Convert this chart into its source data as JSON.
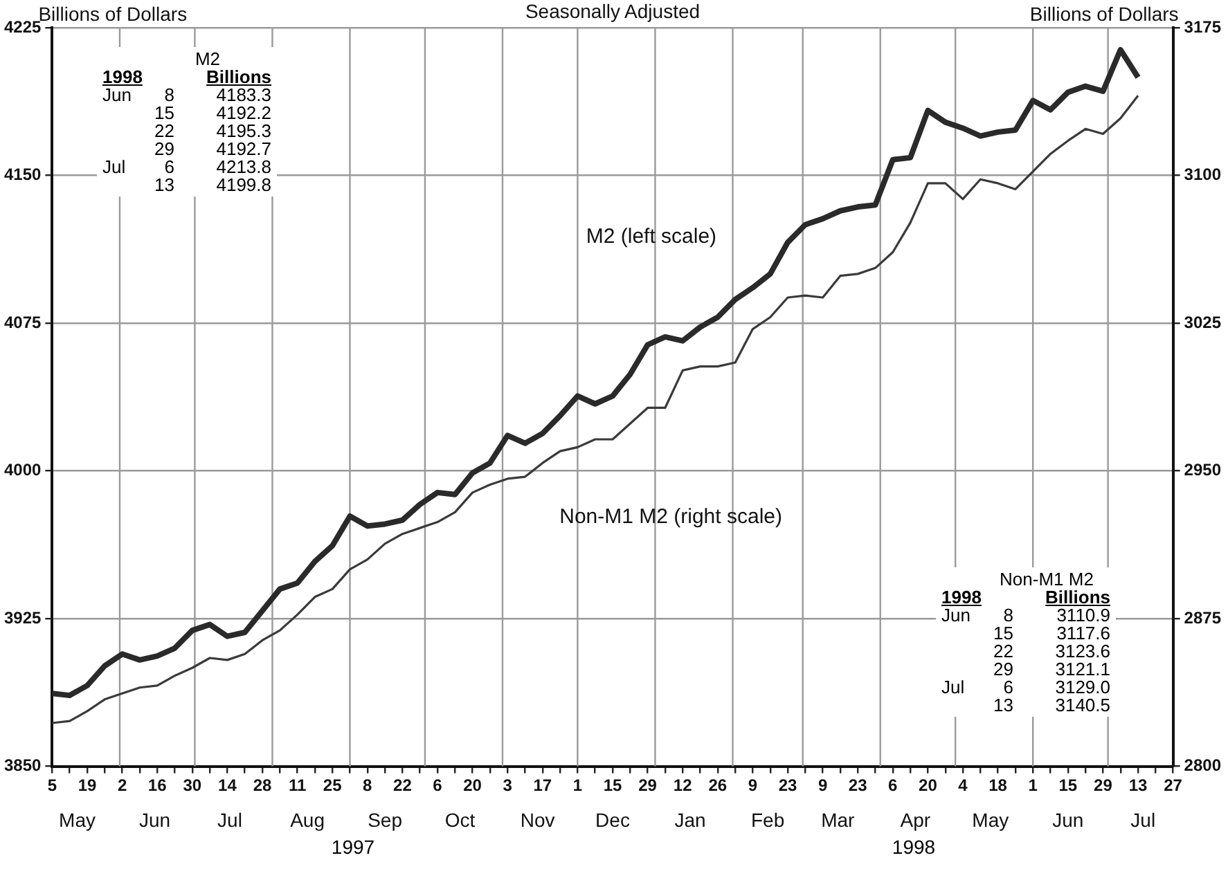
{
  "chart_data": {
    "type": "line",
    "title": "Seasonally Adjusted",
    "ylabel": "Billions of Dollars",
    "y2label": "Billions of Dollars",
    "x": [
      "1997-05-05",
      "1997-05-12",
      "1997-05-19",
      "1997-05-26",
      "1997-06-02",
      "1997-06-09",
      "1997-06-16",
      "1997-06-23",
      "1997-06-30",
      "1997-07-07",
      "1997-07-14",
      "1997-07-21",
      "1997-07-28",
      "1997-08-04",
      "1997-08-11",
      "1997-08-18",
      "1997-08-25",
      "1997-09-01",
      "1997-09-08",
      "1997-09-15",
      "1997-09-22",
      "1997-09-29",
      "1997-10-06",
      "1997-10-13",
      "1997-10-20",
      "1997-10-27",
      "1997-11-03",
      "1997-11-10",
      "1997-11-17",
      "1997-11-24",
      "1997-12-01",
      "1997-12-08",
      "1997-12-15",
      "1997-12-22",
      "1997-12-29",
      "1998-01-05",
      "1998-01-12",
      "1998-01-19",
      "1998-01-26",
      "1998-02-02",
      "1998-02-09",
      "1998-02-16",
      "1998-02-23",
      "1998-03-02",
      "1998-03-09",
      "1998-03-16",
      "1998-03-23",
      "1998-03-30",
      "1998-04-06",
      "1998-04-13",
      "1998-04-20",
      "1998-04-27",
      "1998-05-04",
      "1998-05-11",
      "1998-05-18",
      "1998-05-25",
      "1998-06-01",
      "1998-06-08",
      "1998-06-15",
      "1998-06-22",
      "1998-06-29",
      "1998-07-06",
      "1998-07-13"
    ],
    "series": [
      {
        "name": "M2 (left scale)",
        "color": "#2a2a2a",
        "axis": "y",
        "values": [
          3887,
          3886,
          3891,
          3901,
          3907,
          3904,
          3906,
          3910,
          3919,
          3922,
          3916,
          3918,
          3929,
          3940,
          3943,
          3954,
          3962,
          3977,
          3972,
          3973,
          3975,
          3983,
          3989,
          3988,
          3999,
          4004,
          4018,
          4014,
          4019,
          4028,
          4038,
          4034,
          4038,
          4049,
          4064,
          4068,
          4066,
          4073,
          4078,
          4087,
          4093,
          4100,
          4116,
          4125,
          4128,
          4132,
          4134,
          4135,
          4158,
          4159,
          4183,
          4177,
          4174,
          4170,
          4172,
          4173,
          4188,
          4183.3,
          4192.2,
          4195.3,
          4192.7,
          4213.8,
          4199.8
        ]
      },
      {
        "name": "Non-M1 M2 (right scale)",
        "color": "#3a3a3a",
        "axis": "y2",
        "values": [
          2822,
          2823,
          2828,
          2834,
          2837,
          2840,
          2841,
          2846,
          2850,
          2855,
          2854,
          2857,
          2864,
          2869,
          2877,
          2886,
          2890,
          2900,
          2905,
          2913,
          2918,
          2921,
          2924,
          2929,
          2939,
          2943,
          2946,
          2947,
          2954,
          2960,
          2962,
          2966,
          2966,
          2974,
          2982,
          2982,
          3001,
          3003,
          3003,
          3005,
          3022,
          3028,
          3038,
          3039,
          3038,
          3049,
          3050,
          3053,
          3061,
          3076,
          3096,
          3096,
          3088,
          3098,
          3096,
          3093,
          3102,
          3110.9,
          3117.6,
          3123.6,
          3121.1,
          3129.0,
          3140.5
        ]
      }
    ],
    "xlim": [
      "1997-05-05",
      "1998-07-27"
    ],
    "xticks": [
      {
        "value": "1997-05-05",
        "label": "5"
      },
      {
        "value": "1997-05-12",
        "label": null
      },
      {
        "value": "1997-05-19",
        "label": "19"
      },
      {
        "value": "1997-05-26",
        "label": null
      },
      {
        "value": "1997-06-02",
        "label": "2"
      },
      {
        "value": "1997-06-09",
        "label": null
      },
      {
        "value": "1997-06-16",
        "label": "16"
      },
      {
        "value": "1997-06-23",
        "label": null
      },
      {
        "value": "1997-06-30",
        "label": "30"
      },
      {
        "value": "1997-07-07",
        "label": null
      },
      {
        "value": "1997-07-14",
        "label": "14"
      },
      {
        "value": "1997-07-21",
        "label": null
      },
      {
        "value": "1997-07-28",
        "label": "28"
      },
      {
        "value": "1997-08-04",
        "label": null
      },
      {
        "value": "1997-08-11",
        "label": "11"
      },
      {
        "value": "1997-08-18",
        "label": null
      },
      {
        "value": "1997-08-25",
        "label": "25"
      },
      {
        "value": "1997-09-01",
        "label": null
      },
      {
        "value": "1997-09-08",
        "label": "8"
      },
      {
        "value": "1997-09-15",
        "label": null
      },
      {
        "value": "1997-09-22",
        "label": "22"
      },
      {
        "value": "1997-09-29",
        "label": null
      },
      {
        "value": "1997-10-06",
        "label": "6"
      },
      {
        "value": "1997-10-13",
        "label": null
      },
      {
        "value": "1997-10-20",
        "label": "20"
      },
      {
        "value": "1997-10-27",
        "label": null
      },
      {
        "value": "1997-11-03",
        "label": "3"
      },
      {
        "value": "1997-11-10",
        "label": null
      },
      {
        "value": "1997-11-17",
        "label": "17"
      },
      {
        "value": "1997-11-24",
        "label": null
      },
      {
        "value": "1997-12-01",
        "label": "1"
      },
      {
        "value": "1997-12-08",
        "label": null
      },
      {
        "value": "1997-12-15",
        "label": "15"
      },
      {
        "value": "1997-12-22",
        "label": null
      },
      {
        "value": "1997-12-29",
        "label": "29"
      },
      {
        "value": "1998-01-05",
        "label": null
      },
      {
        "value": "1998-01-12",
        "label": "12"
      },
      {
        "value": "1998-01-19",
        "label": null
      },
      {
        "value": "1998-01-26",
        "label": "26"
      },
      {
        "value": "1998-02-02",
        "label": null
      },
      {
        "value": "1998-02-09",
        "label": "9"
      },
      {
        "value": "1998-02-16",
        "label": null
      },
      {
        "value": "1998-02-23",
        "label": "23"
      },
      {
        "value": "1998-03-02",
        "label": null
      },
      {
        "value": "1998-03-09",
        "label": "9"
      },
      {
        "value": "1998-03-16",
        "label": null
      },
      {
        "value": "1998-03-23",
        "label": "23"
      },
      {
        "value": "1998-03-30",
        "label": null
      },
      {
        "value": "1998-04-06",
        "label": "6"
      },
      {
        "value": "1998-04-13",
        "label": null
      },
      {
        "value": "1998-04-20",
        "label": "20"
      },
      {
        "value": "1998-04-27",
        "label": null
      },
      {
        "value": "1998-05-04",
        "label": "4"
      },
      {
        "value": "1998-05-11",
        "label": null
      },
      {
        "value": "1998-05-18",
        "label": "18"
      },
      {
        "value": "1998-05-25",
        "label": null
      },
      {
        "value": "1998-06-01",
        "label": "1"
      },
      {
        "value": "1998-06-08",
        "label": null
      },
      {
        "value": "1998-06-15",
        "label": "15"
      },
      {
        "value": "1998-06-22",
        "label": null
      },
      {
        "value": "1998-06-29",
        "label": "29"
      },
      {
        "value": "1998-07-06",
        "label": null
      },
      {
        "value": "1998-07-13",
        "label": "13"
      },
      {
        "value": "1998-07-20",
        "label": null
      },
      {
        "value": "1998-07-27",
        "label": "27"
      }
    ],
    "x2ticks": [
      {
        "value": "1997-05-15",
        "label": "May"
      },
      {
        "value": "1997-06-15",
        "label": "Jun"
      },
      {
        "value": "1997-07-15",
        "label": "Jul"
      },
      {
        "value": "1997-08-15",
        "label": "Aug"
      },
      {
        "value": "1997-09-15",
        "label": "Sep"
      },
      {
        "value": "1997-10-15",
        "label": "Oct"
      },
      {
        "value": "1997-11-15",
        "label": "Nov"
      },
      {
        "value": "1997-12-15",
        "label": "Dec"
      },
      {
        "value": "1998-01-15",
        "label": "Jan"
      },
      {
        "value": "1998-02-15",
        "label": "Feb"
      },
      {
        "value": "1998-03-15",
        "label": "Mar"
      },
      {
        "value": "1998-04-15",
        "label": "Apr"
      },
      {
        "value": "1998-05-15",
        "label": "May"
      },
      {
        "value": "1998-06-15",
        "label": "Jun"
      },
      {
        "value": "1998-07-15",
        "label": "Jul"
      }
    ],
    "x2lim": [
      "1997-05-05",
      "1998-07-27"
    ],
    "ylim": [
      3850,
      4225
    ],
    "yticks": [
      3850,
      3925,
      4000,
      4075,
      4150,
      4225
    ],
    "y2lim": [
      2800,
      3175
    ],
    "y2ticks": [
      2800,
      2875,
      2950,
      3025,
      3100,
      3175
    ],
    "grid": true,
    "legend": false,
    "marker": "none",
    "line_style": "solid",
    "annotations": [
      "M2",
      "1998 Billions",
      "Jun 8 4183.3",
      "15 4192.2",
      "22 4195.3",
      "29 4192.7",
      "Jul 6 4213.8",
      "13 4199.8",
      "Non-M1 M2",
      "1998 Billions",
      "Jun 8 3110.9",
      "15 3117.6",
      "22 3123.6",
      "29 3121.1",
      "Jul 6 3129.0",
      "13 3140.5",
      "1997",
      "1998"
    ]
  }
}
